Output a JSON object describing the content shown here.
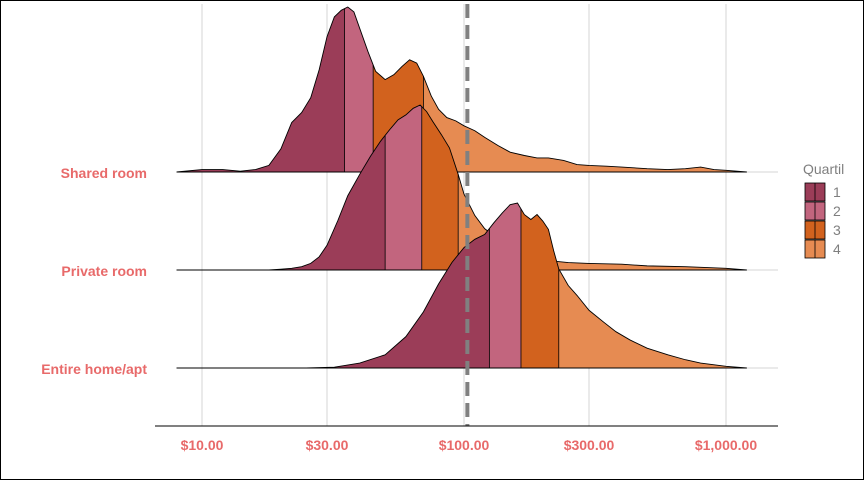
{
  "chart_data": {
    "type": "ridgeline",
    "title": "",
    "xlabel": "",
    "ylabel": "",
    "x_scale": "log10",
    "xlim": [
      7.5,
      1300
    ],
    "x_ticks": [
      10,
      30,
      100,
      300,
      1000
    ],
    "x_tick_labels": [
      "$10.00",
      "$30.00",
      "$100.00",
      "$300.00",
      "$1,000.00"
    ],
    "reference_line": {
      "x": 103,
      "style": "dashed",
      "color": "#808080"
    },
    "grid": "vertical-major",
    "legend": {
      "title": "Quartil",
      "placement": "right",
      "entries": [
        "1",
        "2",
        "3",
        "4"
      ]
    },
    "quartile_colors": [
      "#9b3d58",
      "#c2657e",
      "#d2621e",
      "#e68b52"
    ],
    "label_color": "#e86a6a",
    "categories": [
      "Shared room",
      "Private room",
      "Entire home/apt"
    ],
    "series": [
      {
        "name": "Shared room",
        "quartile_breaks": [
          35,
          45,
          70
        ],
        "x": [
          8,
          10,
          12,
          14,
          16,
          18,
          20,
          22,
          24,
          26,
          28,
          30,
          32,
          34,
          36,
          38,
          40,
          43,
          46,
          50,
          54,
          58,
          62,
          66,
          70,
          75,
          80,
          86,
          93,
          100,
          110,
          120,
          135,
          150,
          170,
          190,
          210,
          240,
          270,
          300,
          350,
          400,
          500,
          600,
          700,
          800,
          900,
          1000,
          1200
        ],
        "density": [
          0.0,
          0.015,
          0.015,
          0.005,
          0.015,
          0.04,
          0.14,
          0.3,
          0.36,
          0.45,
          0.62,
          0.82,
          0.94,
          0.98,
          1.0,
          0.97,
          0.87,
          0.73,
          0.61,
          0.56,
          0.59,
          0.64,
          0.68,
          0.66,
          0.58,
          0.46,
          0.38,
          0.33,
          0.31,
          0.28,
          0.25,
          0.21,
          0.16,
          0.12,
          0.1,
          0.085,
          0.085,
          0.07,
          0.045,
          0.04,
          0.035,
          0.03,
          0.02,
          0.015,
          0.02,
          0.03,
          0.015,
          0.01,
          0.0
        ]
      },
      {
        "name": "Private room",
        "quartile_breaks": [
          50,
          69,
          95
        ],
        "x": [
          8,
          10,
          12,
          15,
          18,
          20,
          22,
          24,
          26,
          28,
          30,
          33,
          36,
          40,
          44,
          48,
          52,
          56,
          60,
          64,
          68,
          72,
          76,
          82,
          88,
          95,
          100,
          110,
          120,
          135,
          150,
          170,
          200,
          250,
          300,
          400,
          500,
          700,
          1000,
          1200
        ],
        "density": [
          0.0,
          0.0,
          0.0,
          0.0,
          0.0,
          0.005,
          0.01,
          0.02,
          0.04,
          0.08,
          0.15,
          0.3,
          0.45,
          0.58,
          0.69,
          0.78,
          0.85,
          0.91,
          0.94,
          0.98,
          1.0,
          0.96,
          0.9,
          0.82,
          0.74,
          0.58,
          0.46,
          0.33,
          0.25,
          0.19,
          0.13,
          0.09,
          0.06,
          0.045,
          0.04,
          0.035,
          0.025,
          0.02,
          0.01,
          0.0
        ]
      },
      {
        "name": "Entire home/apt",
        "quartile_breaks": [
          125,
          165,
          230
        ],
        "x": [
          8,
          15,
          25,
          32,
          40,
          50,
          60,
          70,
          80,
          90,
          100,
          110,
          120,
          130,
          140,
          150,
          160,
          170,
          180,
          190,
          200,
          210,
          220,
          230,
          250,
          270,
          300,
          340,
          380,
          430,
          500,
          600,
          700,
          800,
          1000,
          1200
        ],
        "density": [
          0.0,
          0.0,
          0.0,
          0.005,
          0.03,
          0.08,
          0.19,
          0.34,
          0.51,
          0.64,
          0.73,
          0.78,
          0.81,
          0.88,
          0.94,
          0.99,
          1.0,
          0.93,
          0.9,
          0.93,
          0.89,
          0.84,
          0.71,
          0.6,
          0.5,
          0.44,
          0.35,
          0.28,
          0.22,
          0.17,
          0.12,
          0.08,
          0.05,
          0.03,
          0.01,
          0.0
        ]
      }
    ]
  }
}
